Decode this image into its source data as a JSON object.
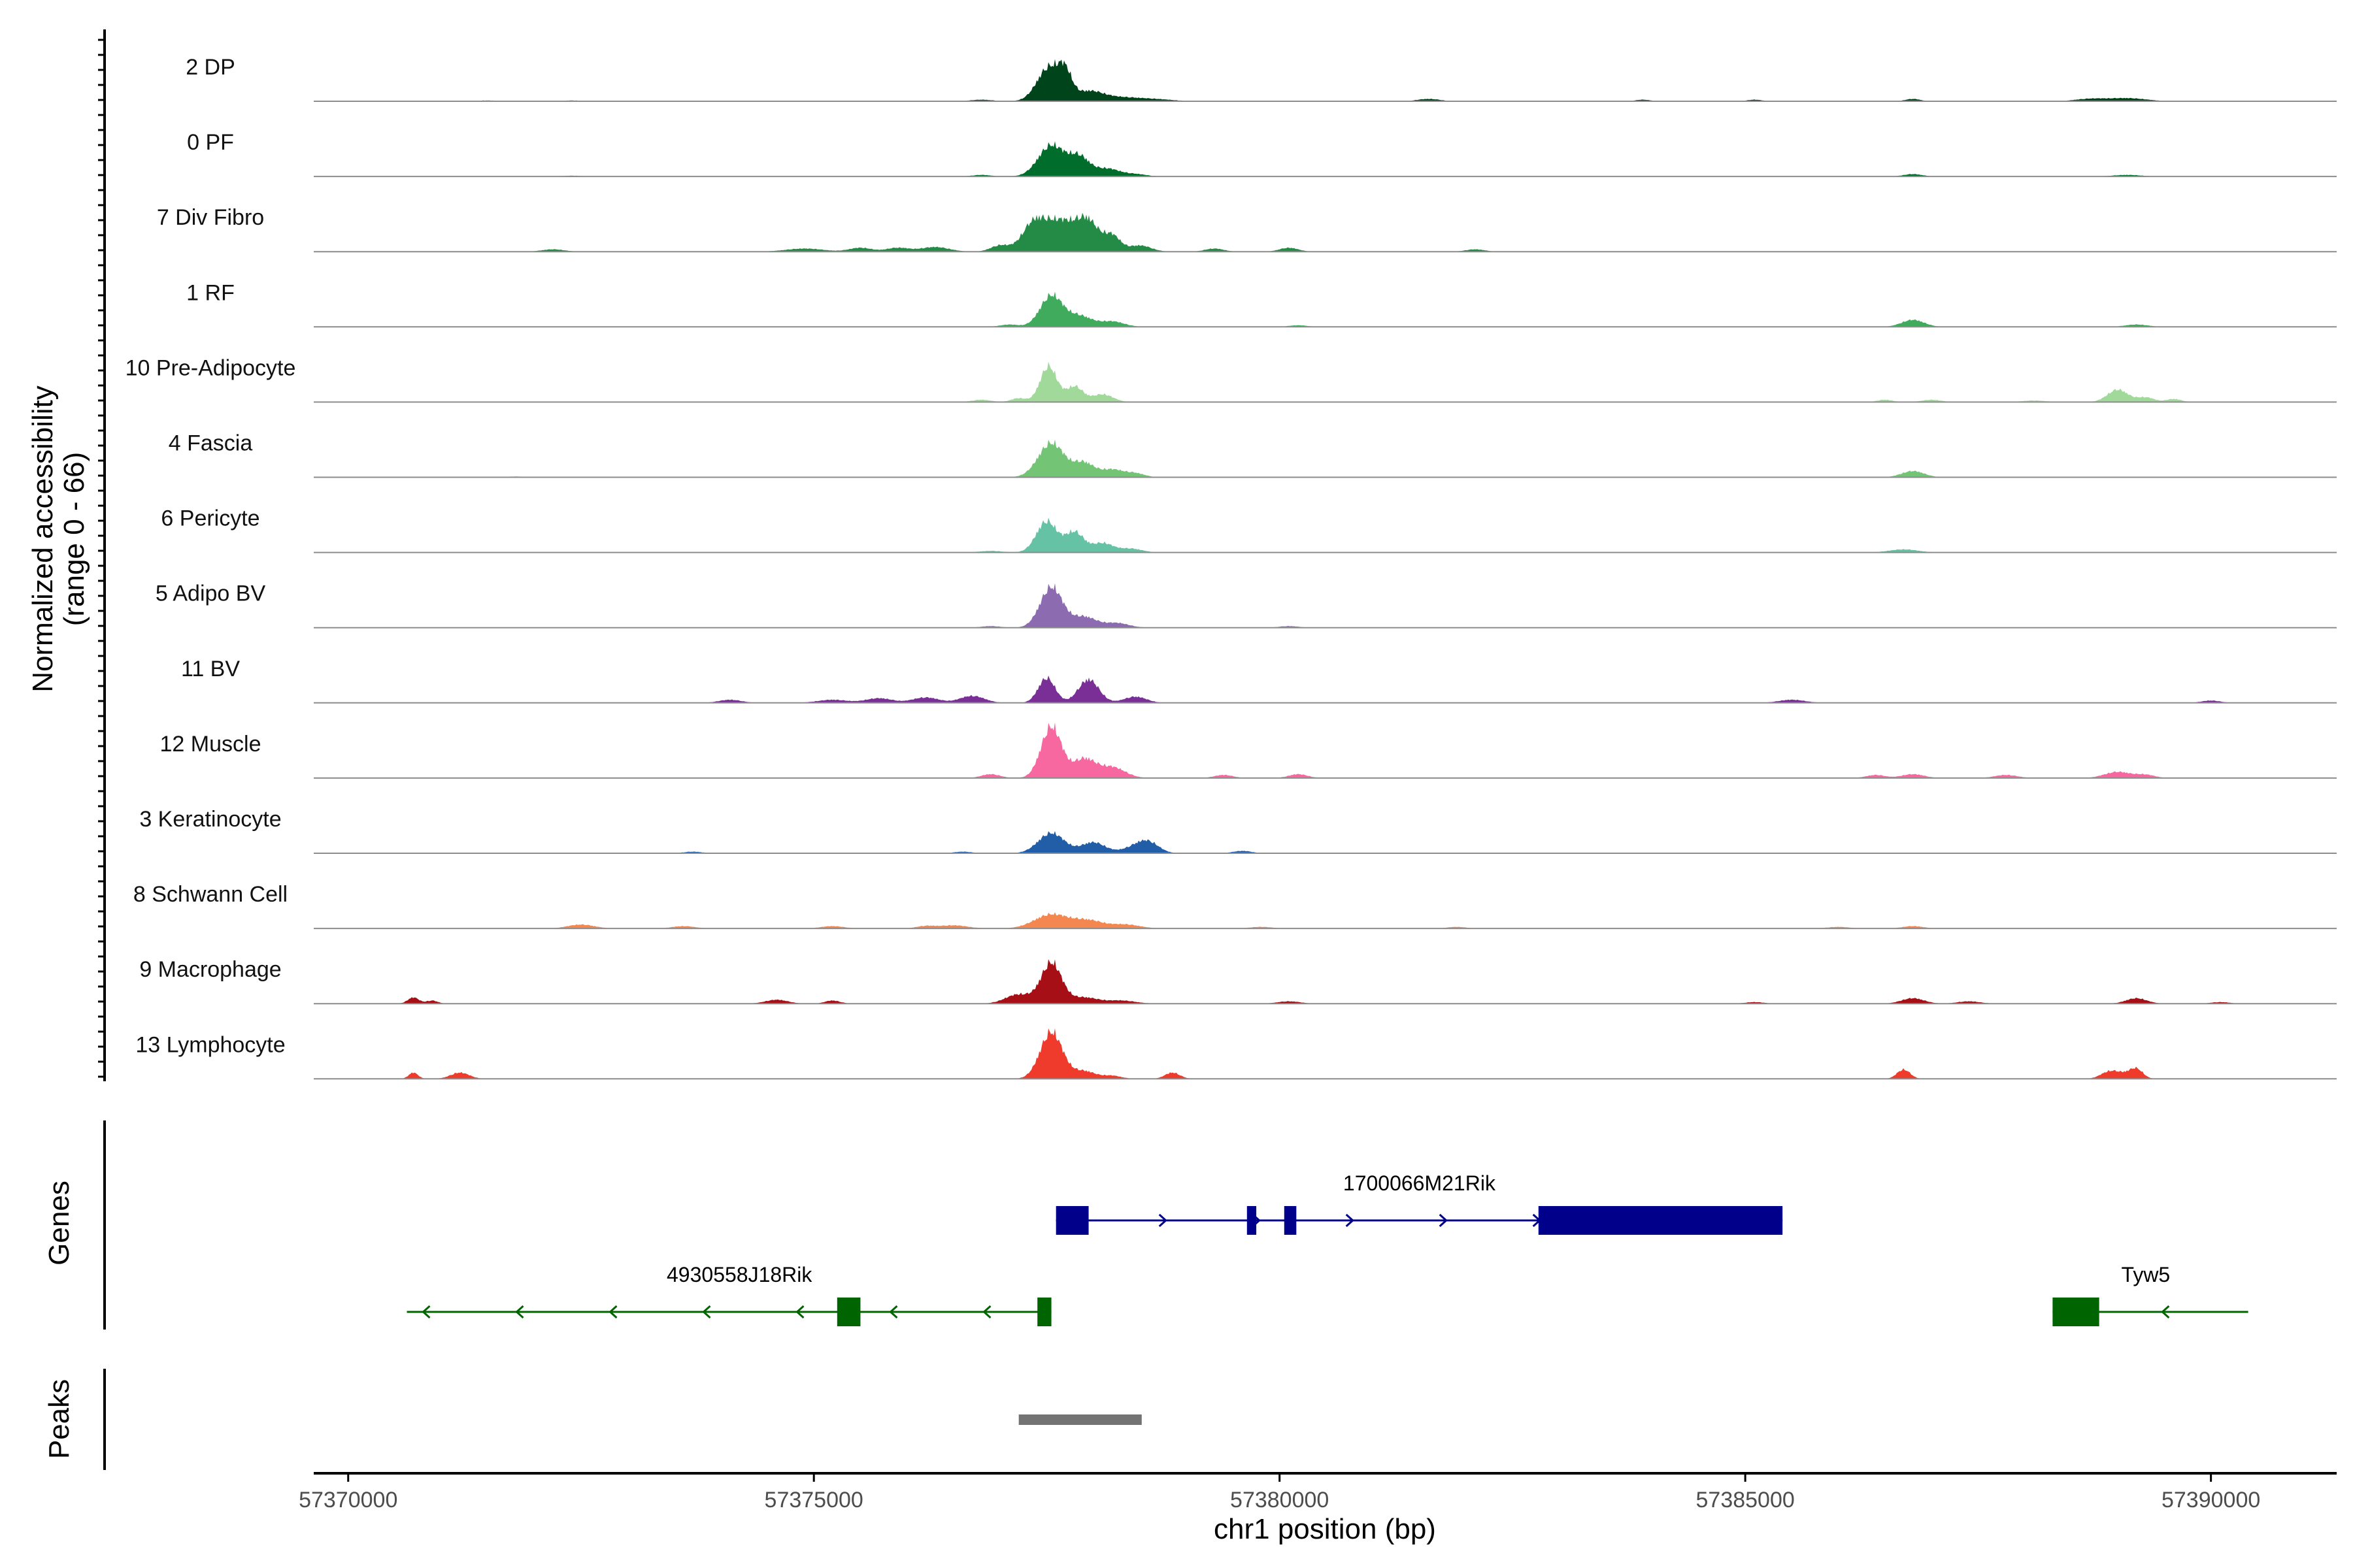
{
  "chart_data": {
    "type": "area",
    "title": "",
    "xlabel": "chr1 position (bp)",
    "ylabel_line1": "Normalized accessibility",
    "ylabel_line2": "(range 0 - 66)",
    "y_range": [
      0,
      66
    ],
    "x_range": [
      57369630,
      57391350
    ],
    "x_ticks": [
      57370000,
      57375000,
      57380000,
      57385000,
      57390000
    ],
    "x_tick_labels": [
      "57370000",
      "57375000",
      "57380000",
      "57385000",
      "57390000"
    ],
    "tracks": [
      {
        "name": "2 DP",
        "color": "#00441b",
        "peaks": [
          [
            57377530,
            44,
            130
          ],
          [
            57377700,
            26,
            70
          ],
          [
            57377950,
            12,
            150
          ],
          [
            57378300,
            5,
            220
          ],
          [
            57378700,
            2,
            180
          ],
          [
            57376800,
            2,
            120
          ],
          [
            57381600,
            3,
            120
          ],
          [
            57386800,
            3,
            80
          ],
          [
            57388700,
            3,
            160
          ],
          [
            57389100,
            4,
            200
          ],
          [
            57385100,
            2,
            80
          ],
          [
            57383900,
            2,
            80
          ],
          [
            57371500,
            1,
            100
          ],
          [
            57372400,
            1,
            100
          ]
        ]
      },
      {
        "name": "0 PF",
        "color": "#006d2c",
        "peaks": [
          [
            57377550,
            40,
            140
          ],
          [
            57377850,
            24,
            110
          ],
          [
            57378150,
            10,
            130
          ],
          [
            57378450,
            3,
            120
          ],
          [
            57376800,
            2,
            100
          ],
          [
            57372400,
            1,
            100
          ],
          [
            57386800,
            3,
            100
          ],
          [
            57389100,
            2,
            150
          ]
        ]
      },
      {
        "name": "7 Div Fibro",
        "color": "#238b45",
        "peaks": [
          [
            57377650,
            40,
            200
          ],
          [
            57377350,
            28,
            120
          ],
          [
            57377950,
            30,
            110
          ],
          [
            57378200,
            20,
            90
          ],
          [
            57378500,
            8,
            120
          ],
          [
            57377000,
            8,
            100
          ],
          [
            57376300,
            6,
            150
          ],
          [
            57375900,
            5,
            120
          ],
          [
            57375500,
            5,
            120
          ],
          [
            57374900,
            4,
            200
          ],
          [
            57372200,
            3,
            120
          ],
          [
            57379300,
            4,
            100
          ],
          [
            57380100,
            5,
            100
          ],
          [
            57382100,
            3,
            100
          ]
        ]
      },
      {
        "name": "1 RF",
        "color": "#41ab5d",
        "peaks": [
          [
            57377550,
            40,
            120
          ],
          [
            57377850,
            14,
            130
          ],
          [
            57378200,
            7,
            130
          ],
          [
            57377100,
            3,
            100
          ],
          [
            57386800,
            9,
            120
          ],
          [
            57389200,
            3,
            120
          ],
          [
            57380200,
            2,
            100
          ]
        ]
      },
      {
        "name": "10 Pre-Adipocyte",
        "color": "#a1d99b",
        "peaks": [
          [
            57377520,
            46,
            90
          ],
          [
            57377800,
            20,
            90
          ],
          [
            57378100,
            10,
            110
          ],
          [
            57377200,
            5,
            80
          ],
          [
            57376800,
            3,
            100
          ],
          [
            57389000,
            16,
            110
          ],
          [
            57389300,
            6,
            90
          ],
          [
            57389600,
            4,
            80
          ],
          [
            57387000,
            3,
            100
          ],
          [
            57388100,
            2,
            120
          ],
          [
            57386500,
            3,
            80
          ]
        ]
      },
      {
        "name": "4 Fascia",
        "color": "#74c476",
        "peaks": [
          [
            57377550,
            44,
            140
          ],
          [
            57377900,
            18,
            110
          ],
          [
            57378200,
            10,
            120
          ],
          [
            57378450,
            5,
            100
          ],
          [
            57386800,
            8,
            120
          ],
          [
            57371800,
            1,
            100
          ]
        ]
      },
      {
        "name": "6 Pericyte",
        "color": "#66c2a4",
        "peaks": [
          [
            57377500,
            40,
            110
          ],
          [
            57377800,
            26,
            100
          ],
          [
            57378100,
            12,
            110
          ],
          [
            57378400,
            5,
            120
          ],
          [
            57376900,
            2,
            120
          ],
          [
            57386700,
            4,
            150
          ]
        ]
      },
      {
        "name": "5 Adipo BV",
        "color": "#8c6bb1",
        "peaks": [
          [
            57377550,
            52,
            120
          ],
          [
            57377900,
            14,
            130
          ],
          [
            57378250,
            6,
            130
          ],
          [
            57376900,
            2,
            100
          ],
          [
            57380100,
            2,
            100
          ]
        ]
      },
      {
        "name": "11 BV",
        "color": "#7a2f96",
        "peaks": [
          [
            57377500,
            32,
            90
          ],
          [
            57377950,
            30,
            110
          ],
          [
            57378450,
            8,
            120
          ],
          [
            57376700,
            9,
            130
          ],
          [
            57376200,
            7,
            140
          ],
          [
            57375700,
            6,
            140
          ],
          [
            57375200,
            4,
            160
          ],
          [
            57374100,
            4,
            120
          ],
          [
            57385500,
            4,
            140
          ],
          [
            57390000,
            3,
            100
          ]
        ]
      },
      {
        "name": "12 Muscle",
        "color": "#f768a1",
        "peaks": [
          [
            57377550,
            66,
            110
          ],
          [
            57377900,
            24,
            120
          ],
          [
            57378200,
            14,
            140
          ],
          [
            57376900,
            5,
            100
          ],
          [
            57379400,
            4,
            100
          ],
          [
            57380200,
            5,
            100
          ],
          [
            57386400,
            4,
            100
          ],
          [
            57386800,
            5,
            120
          ],
          [
            57387800,
            4,
            120
          ],
          [
            57389000,
            8,
            140
          ],
          [
            57389300,
            4,
            100
          ]
        ]
      },
      {
        "name": "3 Keratinocyte",
        "color": "#225ea8",
        "peaks": [
          [
            57377550,
            26,
            140
          ],
          [
            57378000,
            14,
            130
          ],
          [
            57378450,
            8,
            130
          ],
          [
            57378600,
            12,
            110
          ],
          [
            57379600,
            3,
            100
          ],
          [
            57376600,
            2,
            100
          ],
          [
            57373700,
            2,
            100
          ]
        ]
      },
      {
        "name": "8 Schwann Cell",
        "color": "#f4874f",
        "peaks": [
          [
            57377550,
            18,
            180
          ],
          [
            57377950,
            10,
            160
          ],
          [
            57378350,
            5,
            150
          ],
          [
            57376500,
            4,
            150
          ],
          [
            57376200,
            3,
            100
          ],
          [
            57372500,
            5,
            140
          ],
          [
            57373600,
            3,
            120
          ],
          [
            57375200,
            3,
            120
          ],
          [
            57379800,
            2,
            120
          ],
          [
            57386000,
            2,
            120
          ],
          [
            57386800,
            3,
            110
          ],
          [
            57381900,
            2,
            100
          ]
        ]
      },
      {
        "name": "9 Macrophage",
        "color": "#a50f15",
        "peaks": [
          [
            57377550,
            52,
            110
          ],
          [
            57377200,
            12,
            140
          ],
          [
            57377900,
            8,
            150
          ],
          [
            57378300,
            4,
            150
          ],
          [
            57370700,
            8,
            60
          ],
          [
            57370900,
            4,
            60
          ],
          [
            57374600,
            5,
            120
          ],
          [
            57375200,
            4,
            80
          ],
          [
            57380100,
            3,
            120
          ],
          [
            57385100,
            2,
            100
          ],
          [
            57386800,
            7,
            120
          ],
          [
            57387400,
            3,
            120
          ],
          [
            57389200,
            7,
            110
          ],
          [
            57390100,
            2,
            100
          ]
        ]
      },
      {
        "name": "13 Lymphocyte",
        "color": "#ef3b2c",
        "peaks": [
          [
            57377550,
            60,
            120
          ],
          [
            57377900,
            10,
            120
          ],
          [
            57378200,
            4,
            100
          ],
          [
            57378850,
            8,
            80
          ],
          [
            57370700,
            8,
            50
          ],
          [
            57371200,
            8,
            100
          ],
          [
            57386700,
            12,
            70
          ],
          [
            57388900,
            8,
            90
          ],
          [
            57389200,
            12,
            70
          ],
          [
            57389050,
            6,
            100
          ]
        ]
      }
    ],
    "genes": [
      {
        "name": "1700066M21Rik",
        "strand": "+",
        "color": "#00008b",
        "start": 57377600,
        "end": 57385400,
        "exons": [
          [
            57377600,
            57377950
          ],
          [
            57379650,
            57379750
          ],
          [
            57380050,
            57380180
          ],
          [
            57382780,
            57385400
          ]
        ]
      },
      {
        "name": "4930558J18Rik",
        "strand": "-",
        "color": "#006400",
        "start": 57370630,
        "end": 57377550,
        "exons": [
          [
            57375250,
            57375500
          ],
          [
            57377400,
            57377550
          ]
        ]
      },
      {
        "name": "Tyw5",
        "strand": "-",
        "color": "#006400",
        "start": 57388300,
        "end": 57390400,
        "exons": [
          [
            57388300,
            57388800
          ]
        ]
      }
    ],
    "peaks_track": {
      "color": "#737373",
      "regions": [
        [
          57377200,
          57378520
        ]
      ]
    },
    "panel_titles": {
      "genes": "Genes",
      "peaks": "Peaks"
    }
  }
}
